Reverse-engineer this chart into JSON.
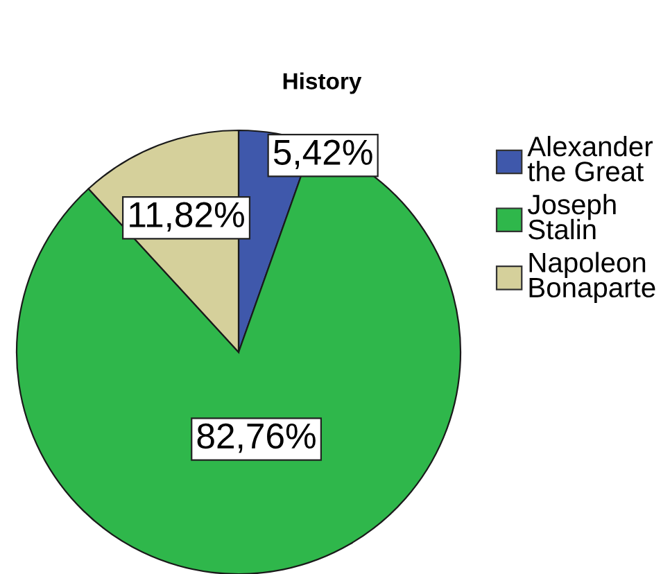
{
  "chart_data": {
    "type": "pie",
    "title": "History",
    "categories": [
      "Alexander the Great",
      "Joseph Stalin",
      "Napoleon Bonaparte"
    ],
    "values": [
      5.42,
      82.76,
      11.82
    ],
    "value_labels": [
      "5,42%",
      "82,76%",
      "11,82%"
    ],
    "colors": [
      "#3f58ab",
      "#2fb74b",
      "#d5d09b"
    ],
    "legend": "right"
  }
}
